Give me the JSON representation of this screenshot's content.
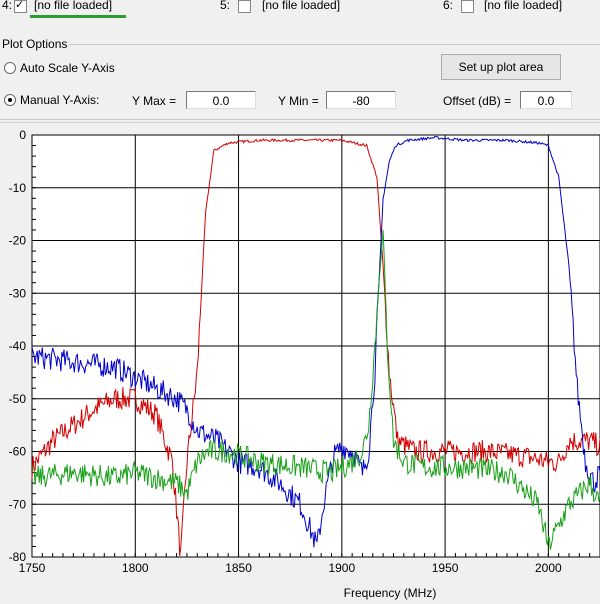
{
  "files": [
    {
      "num": "4:",
      "checked": true,
      "label": "[no file loaded]"
    },
    {
      "num": "5:",
      "checked": false,
      "label": "[no file loaded]"
    },
    {
      "num": "6:",
      "checked": false,
      "label": "[no file loaded]"
    }
  ],
  "plot_options": {
    "group_label": "Plot Options",
    "auto_scale_label": "Auto Scale Y-Axis",
    "manual_label": "Manual Y-Axis:",
    "mode": "manual",
    "ymax_label": "Y Max =",
    "ymax_value": "0.0",
    "ymin_label": "Y Min =",
    "ymin_value": "-80",
    "offset_label": "Offset (dB) =",
    "offset_value": "0.0",
    "setup_button": "Set up plot area"
  },
  "chart_data": {
    "type": "line",
    "xlabel": "Frequency (MHz)",
    "ylabel": "",
    "xlim": [
      1750,
      2025
    ],
    "ylim": [
      -80,
      0
    ],
    "x_ticks": [
      1750,
      1800,
      1850,
      1900,
      1950,
      2000
    ],
    "y_ticks": [
      0,
      -10,
      -20,
      -30,
      -40,
      -50,
      -60,
      -70,
      -80
    ],
    "grid": true,
    "series": [
      {
        "color": "#d40000",
        "x": [
          1750,
          1760,
          1770,
          1780,
          1790,
          1800,
          1810,
          1818,
          1822,
          1825,
          1830,
          1834,
          1838,
          1845,
          1860,
          1880,
          1900,
          1912,
          1917,
          1920,
          1923,
          1927,
          1935,
          1950,
          1970,
          1990,
          2000,
          2005,
          2010,
          2020,
          2025
        ],
        "y": [
          -63,
          -58,
          -55,
          -52,
          -50,
          -50,
          -53,
          -62,
          -80,
          -62,
          -45,
          -15,
          -3,
          -1.5,
          -1,
          -1,
          -1,
          -2,
          -8,
          -25,
          -45,
          -58,
          -60,
          -60,
          -60,
          -61,
          -62,
          -62,
          -58,
          -58,
          -59
        ]
      },
      {
        "color": "#0000c8",
        "x": [
          1750,
          1770,
          1790,
          1800,
          1810,
          1820,
          1825,
          1830,
          1840,
          1850,
          1860,
          1870,
          1880,
          1888,
          1892,
          1896,
          1900,
          1905,
          1910,
          1913,
          1916,
          1918,
          1920,
          1923,
          1926,
          1932,
          1945,
          1960,
          1980,
          1995,
          2000,
          2005,
          2010,
          2014,
          2018,
          2022,
          2025
        ],
        "y": [
          -42,
          -43,
          -44,
          -46,
          -48,
          -50,
          -52,
          -56,
          -58,
          -62,
          -63,
          -66,
          -70,
          -78,
          -68,
          -61,
          -59,
          -60,
          -64,
          -60,
          -45,
          -28,
          -12,
          -5,
          -2,
          -1,
          -0.5,
          -1,
          -1,
          -1.5,
          -2,
          -8,
          -25,
          -48,
          -62,
          -66,
          -64
        ]
      },
      {
        "color": "#1aa01a",
        "x": [
          1750,
          1770,
          1790,
          1800,
          1810,
          1820,
          1825,
          1830,
          1835,
          1845,
          1860,
          1880,
          1895,
          1905,
          1910,
          1913,
          1916,
          1918,
          1920,
          1922,
          1925,
          1930,
          1940,
          1960,
          1980,
          1990,
          1995,
          2000,
          2010,
          2020,
          2025
        ],
        "y": [
          -65,
          -64,
          -65,
          -64,
          -65,
          -66,
          -68,
          -62,
          -60,
          -60,
          -62,
          -63,
          -64,
          -62,
          -60,
          -55,
          -40,
          -28,
          -18,
          -40,
          -58,
          -62,
          -63,
          -63,
          -64,
          -68,
          -70,
          -78,
          -70,
          -66,
          -70
        ]
      }
    ]
  }
}
